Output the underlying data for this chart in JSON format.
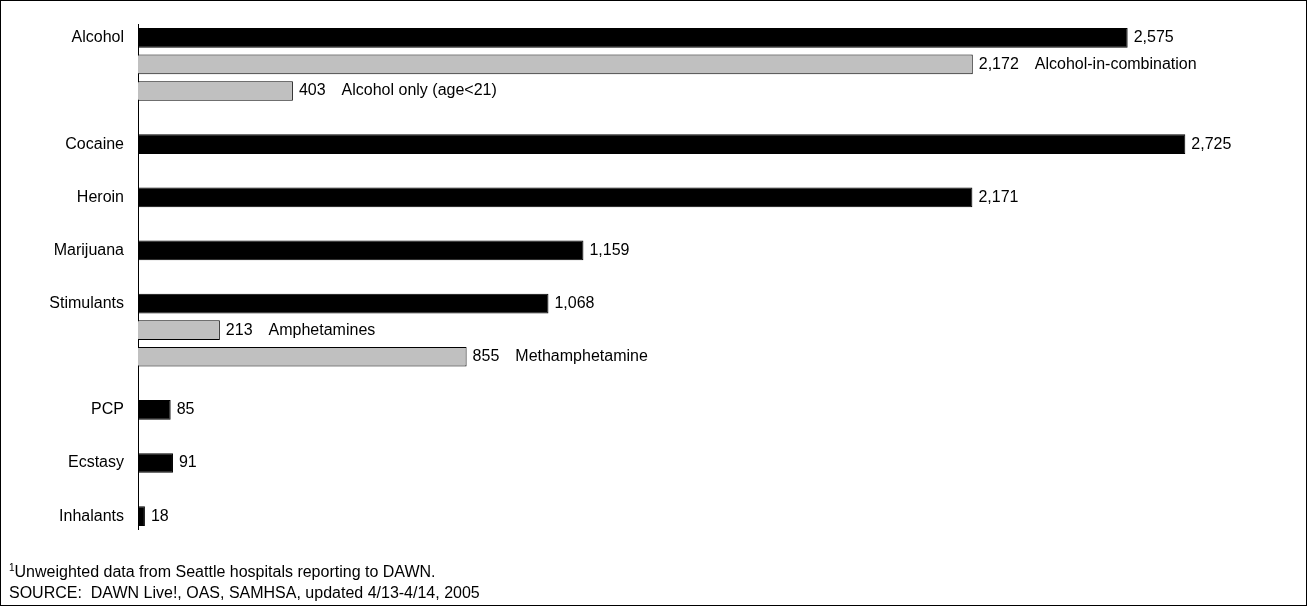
{
  "chart_data": {
    "type": "bar",
    "orientation": "horizontal",
    "categories": [
      "Alcohol",
      null,
      null,
      null,
      "Cocaine",
      null,
      "Heroin",
      null,
      "Marijuana",
      null,
      "Stimulants",
      null,
      null,
      null,
      "PCP",
      null,
      "Ecstasy",
      null,
      "Inhalants"
    ],
    "tick_labels": "y",
    "legend": false,
    "series": [
      {
        "color": "#000000",
        "values": [
          2575,
          null,
          null,
          null,
          2725,
          null,
          2171,
          null,
          1159,
          null,
          1068,
          null,
          null,
          null,
          85,
          null,
          91,
          null,
          18
        ],
        "value_labels": [
          "2,575",
          null,
          null,
          null,
          "2,725",
          null,
          "2,171",
          null,
          "1,159",
          null,
          "1,068",
          null,
          null,
          null,
          "85",
          null,
          "91",
          null,
          "18"
        ]
      },
      {
        "color": "#c0c0c0",
        "values": [
          null,
          2172,
          403,
          null,
          null,
          null,
          null,
          null,
          null,
          null,
          null,
          213,
          855,
          null,
          null,
          null,
          null,
          null,
          null
        ],
        "value_labels": [
          null,
          "2,172  Alcohol-in-combination",
          "403  Alcohol only (age<21)",
          null,
          null,
          null,
          null,
          null,
          null,
          null,
          null,
          "213  Amphetamines",
          "855  Methamphetamine",
          null,
          null,
          null,
          null,
          null,
          null
        ]
      }
    ],
    "annotations": [
      "$^{1}$Unweighted data from Seattle hospitals reporting to DAWN.",
      "SOURCE:  DAWN Live!, OAS, SAMHSA, updated 4/13-4/14, 2005"
    ]
  }
}
